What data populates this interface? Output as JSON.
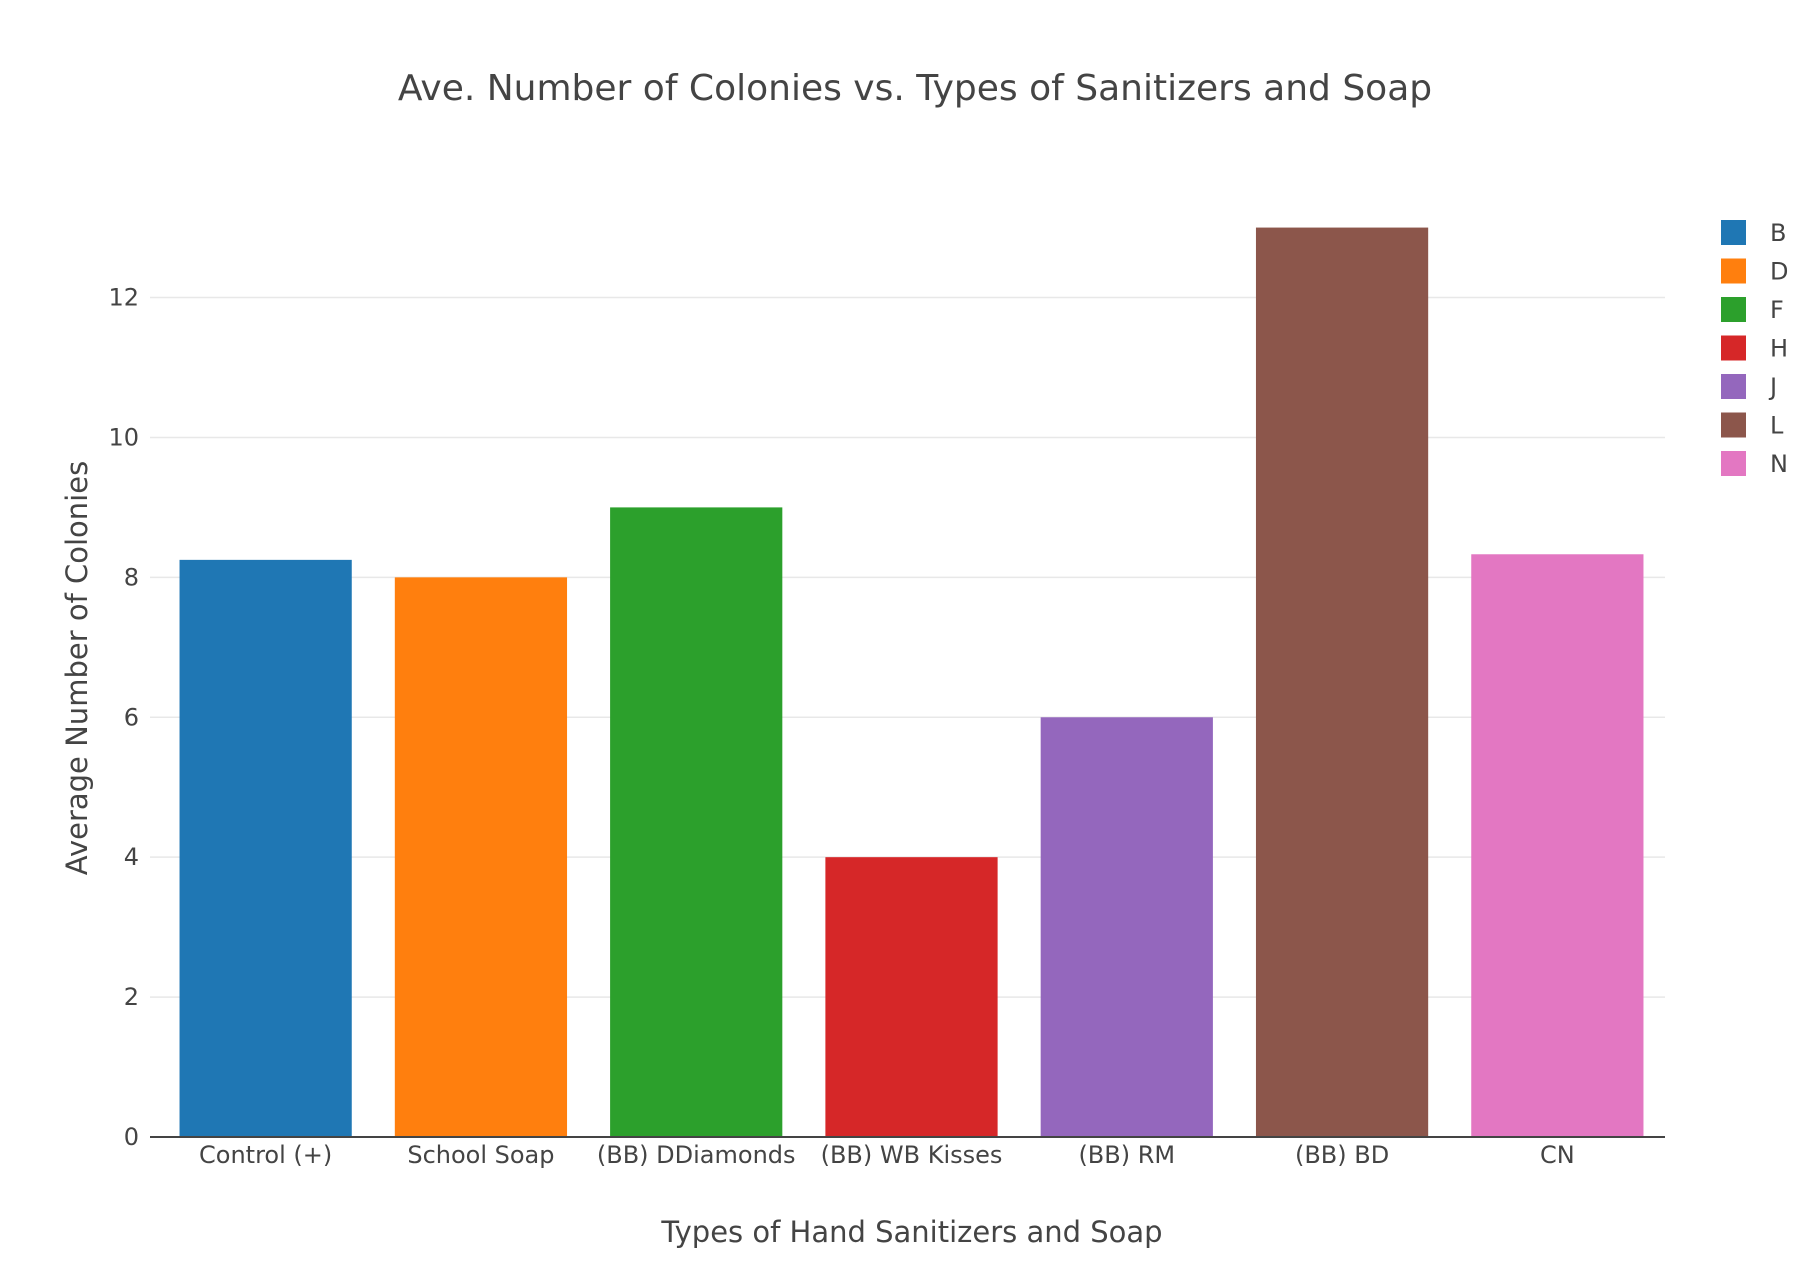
{
  "chart_data": {
    "type": "bar",
    "title": "Ave. Number of Colonies vs. Types of Sanitizers and Soap",
    "xlabel": "Types of Hand Sanitizers and Soap",
    "ylabel": "Average Number of Colonies",
    "categories": [
      "Control (+)",
      "School Soap",
      "(BB) DDiamonds",
      "(BB) WB Kisses",
      "(BB) RM",
      "(BB) BD",
      "CN"
    ],
    "series": [
      {
        "name": "B",
        "category": "Control (+)",
        "value": 8.25,
        "color": "#1f77b4"
      },
      {
        "name": "D",
        "category": "School Soap",
        "value": 8,
        "color": "#ff7f0e"
      },
      {
        "name": "F",
        "category": "(BB) DDiamonds",
        "value": 9,
        "color": "#2ca02c"
      },
      {
        "name": "H",
        "category": "(BB) WB Kisses",
        "value": 4,
        "color": "#d62728"
      },
      {
        "name": "J",
        "category": "(BB) RM",
        "value": 6,
        "color": "#9467bd"
      },
      {
        "name": "L",
        "category": "(BB) BD",
        "value": 13,
        "color": "#8c564b"
      },
      {
        "name": "N",
        "category": "CN",
        "value": 8.33,
        "color": "#e377c2"
      }
    ],
    "ylim": [
      0,
      13.68
    ],
    "yticks": [
      0,
      2,
      4,
      6,
      8,
      10,
      12
    ],
    "grid": true,
    "legend_position": "top-right"
  }
}
